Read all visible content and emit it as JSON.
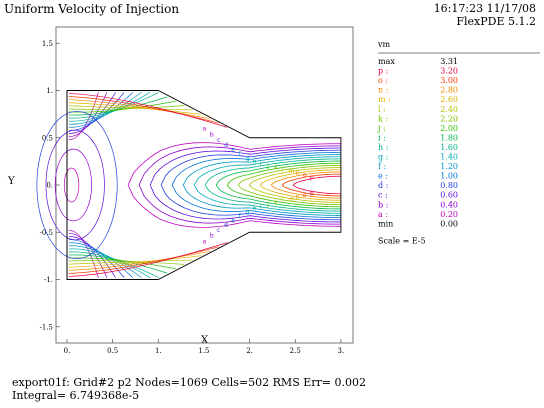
{
  "header": {
    "title": "Uniform Velocity of Injection",
    "timestamp": "16:17:23 11/17/08",
    "version": "FlexPDE 5.1.2"
  },
  "footer": {
    "line1": "export01f:  Grid#2  p2  Nodes=1069 Cells=502 RMS Err= 0.002",
    "line2": "Integral=  6.749368e-5"
  },
  "chart_data": {
    "type": "contour",
    "variable": "vm",
    "xlabel": "X",
    "ylabel": "Y",
    "xlim": [
      0,
      3
    ],
    "ylim": [
      -1.6,
      1.6
    ],
    "x_ticks": [
      "0.",
      "0.5",
      "1.",
      "1.5",
      "2.",
      "2.5",
      "3."
    ],
    "y_ticks": [
      "1.5",
      "1.",
      "0.5",
      "0.",
      "-0.5",
      "-1.",
      "-1.5"
    ],
    "max": "3.31",
    "min": "0.00",
    "scale_note": "Scale = E-5",
    "levels": [
      {
        "label": "p",
        "value": "3.20",
        "color": "#e8003c"
      },
      {
        "label": "o",
        "value": "3.00",
        "color": "#f53a00"
      },
      {
        "label": "n",
        "value": "2.80",
        "color": "#f58a00"
      },
      {
        "label": "m",
        "value": "2.60",
        "color": "#e0b400"
      },
      {
        "label": "l",
        "value": "2.40",
        "color": "#b6c400"
      },
      {
        "label": "k",
        "value": "2.20",
        "color": "#7fc400"
      },
      {
        "label": "j",
        "value": "2.00",
        "color": "#32c000"
      },
      {
        "label": "i",
        "value": "1.80",
        "color": "#00b84a"
      },
      {
        "label": "h",
        "value": "1.60",
        "color": "#00b48e"
      },
      {
        "label": "g",
        "value": "1.40",
        "color": "#00acb4"
      },
      {
        "label": "f",
        "value": "1.20",
        "color": "#0098c8"
      },
      {
        "label": "e",
        "value": "1.00",
        "color": "#0070d8"
      },
      {
        "label": "d",
        "value": "0.80",
        "color": "#2240e0"
      },
      {
        "label": "c",
        "value": "0.60",
        "color": "#5a10e0"
      },
      {
        "label": "b",
        "value": "0.40",
        "color": "#9000d0"
      },
      {
        "label": "a",
        "value": "0.20",
        "color": "#c000c0"
      }
    ]
  }
}
